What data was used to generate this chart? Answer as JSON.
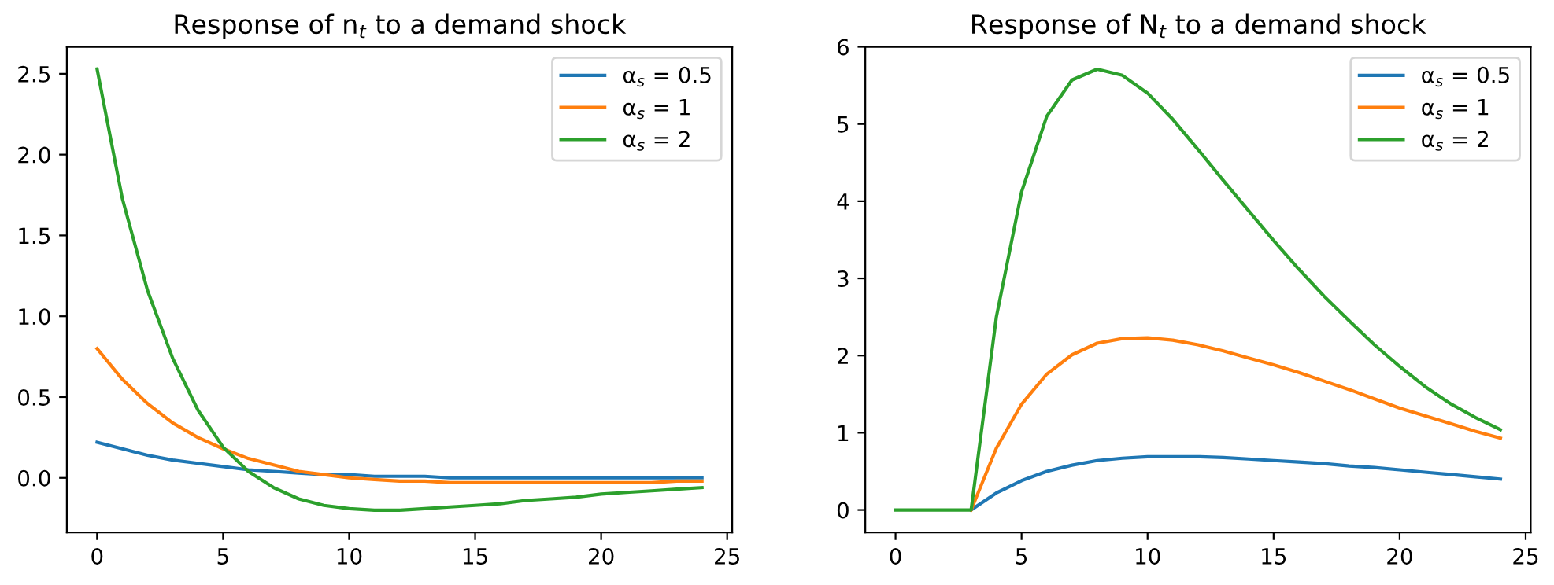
{
  "chart_data": [
    {
      "type": "line",
      "title": "Response of n$_{t}$ to a demand shock",
      "x": [
        0,
        1,
        2,
        3,
        4,
        5,
        6,
        7,
        8,
        9,
        10,
        11,
        12,
        13,
        14,
        15,
        16,
        17,
        18,
        19,
        20,
        21,
        22,
        23,
        24
      ],
      "series": [
        {
          "name": "α$_{s}$ = 0.5",
          "color": "#1f77b4",
          "values": [
            0.22,
            0.18,
            0.14,
            0.11,
            0.09,
            0.07,
            0.05,
            0.04,
            0.03,
            0.02,
            0.02,
            0.01,
            0.01,
            0.01,
            0.0,
            0.0,
            0,
            0,
            0,
            0,
            0,
            0,
            0,
            0,
            0
          ]
        },
        {
          "name": "α$_{s}$ = 1",
          "color": "#ff7f0e",
          "values": [
            0.8,
            0.61,
            0.46,
            0.34,
            0.25,
            0.18,
            0.12,
            0.08,
            0.04,
            0.02,
            0.0,
            -0.01,
            -0.02,
            -0.02,
            -0.03,
            -0.03,
            -0.03,
            -0.03,
            -0.03,
            -0.03,
            -0.03,
            -0.03,
            -0.03,
            -0.02,
            -0.02
          ]
        },
        {
          "name": "α$_{s}$ = 2",
          "color": "#2ca02c",
          "values": [
            2.53,
            1.73,
            1.16,
            0.74,
            0.42,
            0.19,
            0.04,
            -0.06,
            -0.13,
            -0.17,
            -0.19,
            -0.2,
            -0.2,
            -0.19,
            -0.18,
            -0.17,
            -0.16,
            -0.14,
            -0.13,
            -0.12,
            -0.1,
            -0.09,
            -0.08,
            -0.07,
            -0.06
          ]
        }
      ],
      "xlim": [
        -1.2,
        25.2
      ],
      "xticks": [
        0,
        5,
        10,
        15,
        20,
        25
      ],
      "ylim": [
        -0.337,
        2.667
      ],
      "yticks": [
        {
          "value": 0,
          "label": "0.0"
        },
        0.5,
        {
          "value": 1,
          "label": "1.0"
        },
        1.5,
        {
          "value": 2,
          "label": "2.0"
        },
        2.5
      ],
      "legend": "top right",
      "grid": false
    },
    {
      "type": "line",
      "title": "Response of N$_{t}$ to a demand shock",
      "x": [
        0,
        1,
        2,
        3,
        4,
        5,
        6,
        7,
        8,
        9,
        10,
        11,
        12,
        13,
        14,
        15,
        16,
        17,
        18,
        19,
        20,
        21,
        22,
        23,
        24
      ],
      "series": [
        {
          "name": "α$_{s}$ = 0.5",
          "color": "#1f77b4",
          "values": [
            null,
            null,
            null,
            0,
            0.22,
            0.38,
            0.5,
            0.58,
            0.64,
            0.67,
            0.69,
            0.69,
            0.69,
            0.68,
            0.66,
            0.64,
            0.62,
            0.6,
            0.57,
            0.55,
            0.52,
            0.49,
            0.46,
            0.43,
            0.4
          ]
        },
        {
          "name": "α$_{s}$ = 1",
          "color": "#ff7f0e",
          "values": [
            null,
            null,
            null,
            0,
            0.8,
            1.37,
            1.76,
            2.01,
            2.16,
            2.22,
            2.23,
            2.2,
            2.14,
            2.06,
            1.97,
            1.88,
            1.78,
            1.67,
            1.56,
            1.44,
            1.32,
            1.22,
            1.12,
            1.02,
            0.93
          ]
        },
        {
          "name": "α$_{s}$ = 2",
          "color": "#2ca02c",
          "values": [
            0,
            0,
            0,
            0,
            2.5,
            4.12,
            5.1,
            5.57,
            5.71,
            5.63,
            5.4,
            5.06,
            4.67,
            4.27,
            3.88,
            3.49,
            3.12,
            2.77,
            2.45,
            2.14,
            1.86,
            1.6,
            1.38,
            1.2,
            1.04
          ]
        }
      ],
      "xlim": [
        -1.2,
        25.2
      ],
      "xticks": [
        0,
        5,
        10,
        15,
        20,
        25
      ],
      "ylim": [
        -0.29,
        6.0
      ],
      "yticks": [
        0,
        1,
        2,
        3,
        4,
        5,
        6
      ],
      "legend": "top right",
      "grid": false
    }
  ]
}
